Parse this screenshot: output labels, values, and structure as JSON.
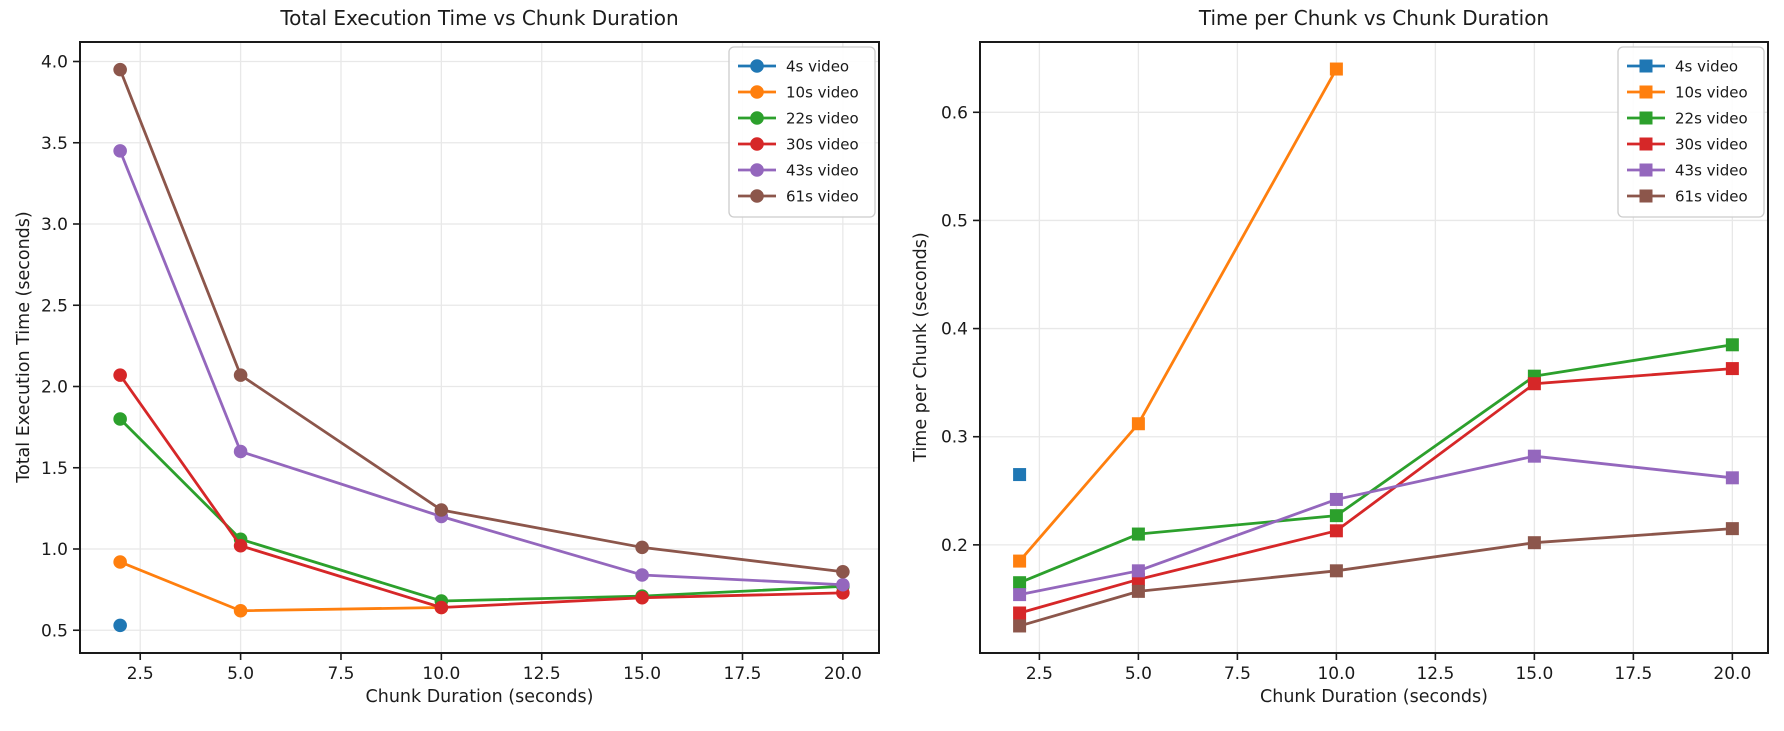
{
  "page": {
    "background": "#ffffff"
  },
  "style": {
    "grid_color": "#e8e8e8",
    "spine_color": "#1a1a1a",
    "text_color": "#1a1a1a",
    "legend_border": "#cccccc",
    "legend_background": "#ffffff"
  },
  "chart_data": [
    {
      "id": "total-execution-time",
      "type": "line",
      "title": "Total Execution Time vs Chunk Duration",
      "xlabel": "Chunk Duration (seconds)",
      "ylabel": "Total Execution Time (seconds)",
      "marker": "circle",
      "grid": true,
      "legend_position": "upper right",
      "xlim": [
        1.0,
        20.9
      ],
      "ylim": [
        0.36,
        4.12
      ],
      "xticks": {
        "values": [
          2.5,
          5.0,
          7.5,
          10.0,
          12.5,
          15.0,
          17.5,
          20.0
        ],
        "labels": [
          "2.5",
          "5.0",
          "7.5",
          "10.0",
          "12.5",
          "15.0",
          "17.5",
          "20.0"
        ]
      },
      "yticks": {
        "values": [
          0.5,
          1.0,
          1.5,
          2.0,
          2.5,
          3.0,
          3.5,
          4.0
        ],
        "labels": [
          "0.5",
          "1.0",
          "1.5",
          "2.0",
          "2.5",
          "3.0",
          "3.5",
          "4.0"
        ]
      },
      "series": [
        {
          "name": "4s video",
          "color": "#1f77b4",
          "x": [
            2
          ],
          "y": [
            0.53
          ]
        },
        {
          "name": "10s video",
          "color": "#ff7f0e",
          "x": [
            2,
            5,
            10
          ],
          "y": [
            0.92,
            0.62,
            0.64
          ]
        },
        {
          "name": "22s video",
          "color": "#2ca02c",
          "x": [
            2,
            5,
            10,
            15,
            20
          ],
          "y": [
            1.8,
            1.06,
            0.68,
            0.71,
            0.77
          ]
        },
        {
          "name": "30s video",
          "color": "#d62728",
          "x": [
            2,
            5,
            10,
            15,
            20
          ],
          "y": [
            2.07,
            1.02,
            0.64,
            0.7,
            0.73
          ]
        },
        {
          "name": "43s video",
          "color": "#9467bd",
          "x": [
            2,
            5,
            10,
            15,
            20
          ],
          "y": [
            3.45,
            1.6,
            1.2,
            0.84,
            0.78
          ]
        },
        {
          "name": "61s video",
          "color": "#8c564b",
          "x": [
            2,
            5,
            10,
            15,
            20
          ],
          "y": [
            3.95,
            2.07,
            1.24,
            1.01,
            0.86
          ]
        }
      ]
    },
    {
      "id": "time-per-chunk",
      "type": "line",
      "title": "Time per Chunk vs Chunk Duration",
      "xlabel": "Chunk Duration (seconds)",
      "ylabel": "Time per Chunk (seconds)",
      "marker": "square",
      "grid": true,
      "legend_position": "upper right",
      "xlim": [
        1.0,
        20.9
      ],
      "ylim": [
        0.1,
        0.665
      ],
      "xticks": {
        "values": [
          2.5,
          5.0,
          7.5,
          10.0,
          12.5,
          15.0,
          17.5,
          20.0
        ],
        "labels": [
          "2.5",
          "5.0",
          "7.5",
          "10.0",
          "12.5",
          "15.0",
          "17.5",
          "20.0"
        ]
      },
      "yticks": {
        "values": [
          0.2,
          0.3,
          0.4,
          0.5,
          0.6
        ],
        "labels": [
          "0.2",
          "0.3",
          "0.4",
          "0.5",
          "0.6"
        ]
      },
      "series": [
        {
          "name": "4s video",
          "color": "#1f77b4",
          "x": [
            2
          ],
          "y": [
            0.265
          ]
        },
        {
          "name": "10s video",
          "color": "#ff7f0e",
          "x": [
            2,
            5,
            10
          ],
          "y": [
            0.185,
            0.312,
            0.64
          ]
        },
        {
          "name": "22s video",
          "color": "#2ca02c",
          "x": [
            2,
            5,
            10,
            15,
            20
          ],
          "y": [
            0.165,
            0.21,
            0.227,
            0.356,
            0.385
          ]
        },
        {
          "name": "30s video",
          "color": "#d62728",
          "x": [
            2,
            5,
            10,
            15,
            20
          ],
          "y": [
            0.137,
            0.168,
            0.213,
            0.349,
            0.363
          ]
        },
        {
          "name": "43s video",
          "color": "#9467bd",
          "x": [
            2,
            5,
            10,
            15,
            20
          ],
          "y": [
            0.154,
            0.176,
            0.242,
            0.282,
            0.262
          ]
        },
        {
          "name": "61s video",
          "color": "#8c564b",
          "x": [
            2,
            5,
            10,
            15,
            20
          ],
          "y": [
            0.125,
            0.157,
            0.176,
            0.202,
            0.215
          ]
        }
      ]
    }
  ]
}
